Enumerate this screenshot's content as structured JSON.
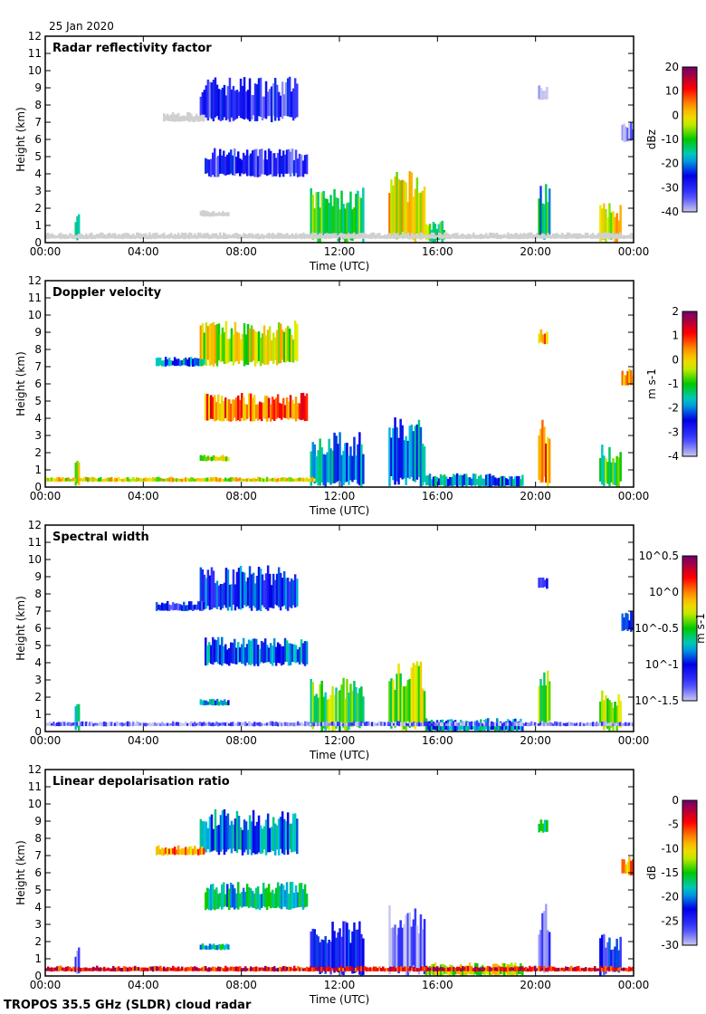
{
  "date_label": "25 Jan 2020",
  "footer": "TROPOS 35.5 GHz (SLDR) cloud radar",
  "chart_data": [
    {
      "type": "heatmap",
      "title": "Radar reflectivity factor",
      "xlabel": "Time (UTC)",
      "ylabel": "Height (km)",
      "xlim": [
        0,
        24
      ],
      "ylim": [
        0,
        12
      ],
      "xticks": [
        "00:00",
        "04:00",
        "08:00",
        "12:00",
        "16:00",
        "20:00",
        "00:00"
      ],
      "yticks": [
        "0",
        "1",
        "2",
        "3",
        "4",
        "5",
        "6",
        "7",
        "8",
        "9",
        "10",
        "11",
        "12"
      ],
      "colorbar": {
        "label": "dBz",
        "range": [
          -40,
          20
        ],
        "ticks": [
          "20",
          "10",
          "0",
          "-10",
          "-20",
          "-30",
          "-40"
        ]
      },
      "features": [
        [
          6.3,
          10.3,
          7.0,
          9.7,
          -30
        ],
        [
          4.8,
          6.5,
          7.0,
          7.6,
          -45
        ],
        [
          6.5,
          10.7,
          3.8,
          5.5,
          -30
        ],
        [
          6.3,
          7.5,
          1.5,
          1.9,
          -45
        ],
        [
          1.2,
          1.4,
          0.0,
          1.8,
          -20
        ],
        [
          10.8,
          13.0,
          0.0,
          3.2,
          -10
        ],
        [
          14.0,
          15.5,
          0.0,
          4.2,
          0
        ],
        [
          15.5,
          16.3,
          0.0,
          1.3,
          -10
        ],
        [
          20.1,
          20.6,
          0.0,
          3.8,
          -15
        ],
        [
          22.6,
          23.5,
          0.0,
          2.3,
          0
        ],
        [
          20.1,
          20.5,
          8.3,
          9.2,
          -40
        ],
        [
          23.5,
          24,
          5.8,
          7.0,
          -40
        ],
        [
          0,
          24,
          0.2,
          0.6,
          -45
        ]
      ]
    },
    {
      "type": "heatmap",
      "title": "Doppler velocity",
      "xlabel": "Time (UTC)",
      "ylabel": "Height (km)",
      "xlim": [
        0,
        24
      ],
      "ylim": [
        0,
        12
      ],
      "xticks": [
        "00:00",
        "04:00",
        "08:00",
        "12:00",
        "16:00",
        "20:00",
        "00:00"
      ],
      "yticks": [
        "0",
        "1",
        "2",
        "3",
        "4",
        "5",
        "6",
        "7",
        "8",
        "9",
        "10",
        "11",
        "12"
      ],
      "colorbar": {
        "label": "m s-1",
        "range": [
          -4,
          2
        ],
        "ticks": [
          "2",
          "1",
          "0",
          "-1",
          "-2",
          "-3",
          "-4"
        ]
      },
      "features": [
        [
          6.3,
          10.3,
          7.0,
          9.7,
          -0.3
        ],
        [
          4.5,
          6.5,
          7.0,
          7.6,
          -2.0
        ],
        [
          6.5,
          10.7,
          3.8,
          5.5,
          0.6
        ],
        [
          6.3,
          7.5,
          1.5,
          1.9,
          -0.3
        ],
        [
          1.2,
          1.4,
          0.0,
          1.8,
          -0.5
        ],
        [
          10.8,
          13.0,
          0.0,
          3.2,
          -2.0
        ],
        [
          14.0,
          15.5,
          0.0,
          4.2,
          -2.2
        ],
        [
          15.5,
          19.5,
          0.0,
          0.8,
          -2.0
        ],
        [
          20.1,
          20.6,
          0.0,
          4.2,
          0.5
        ],
        [
          22.6,
          23.5,
          0.0,
          2.5,
          -1.0
        ],
        [
          20.1,
          20.5,
          8.3,
          9.2,
          0.5
        ],
        [
          23.5,
          24,
          5.8,
          7.0,
          0.3
        ],
        [
          0,
          11,
          0.3,
          0.6,
          -0.2
        ]
      ]
    },
    {
      "type": "heatmap",
      "title": "Spectral width",
      "xlabel": "Time (UTC)",
      "ylabel": "Height (km)",
      "xlim": [
        0,
        24
      ],
      "ylim": [
        0,
        12
      ],
      "xticks": [
        "00:00",
        "04:00",
        "08:00",
        "12:00",
        "16:00",
        "20:00",
        "00:00"
      ],
      "yticks": [
        "0",
        "1",
        "2",
        "3",
        "4",
        "5",
        "6",
        "7",
        "8",
        "9",
        "10",
        "11",
        "12"
      ],
      "colorbar": {
        "label": "m s-1",
        "range": [
          -1.5,
          0.5
        ],
        "ticks": [
          "10^0.5",
          "10^0",
          "10^-0.5",
          "10^-1",
          "10^-1.5"
        ]
      },
      "features": [
        [
          6.3,
          10.3,
          7.0,
          9.7,
          -1.0
        ],
        [
          4.5,
          6.5,
          7.0,
          7.6,
          -1.1
        ],
        [
          6.5,
          10.7,
          3.8,
          5.5,
          -0.9
        ],
        [
          6.3,
          7.5,
          1.5,
          1.9,
          -0.8
        ],
        [
          1.2,
          1.4,
          0.0,
          1.8,
          -0.7
        ],
        [
          10.8,
          13.0,
          0.0,
          3.2,
          -0.5
        ],
        [
          14.0,
          15.5,
          0.0,
          4.2,
          -0.4
        ],
        [
          15.5,
          19.5,
          0.0,
          0.8,
          -0.8
        ],
        [
          20.1,
          20.6,
          0.0,
          4.2,
          -0.5
        ],
        [
          22.6,
          23.5,
          0.0,
          2.5,
          -0.3
        ],
        [
          20.1,
          20.5,
          8.3,
          9.2,
          -1.1
        ],
        [
          23.5,
          24,
          5.8,
          7.0,
          -1.1
        ],
        [
          0,
          24,
          0.3,
          0.6,
          -1.4
        ]
      ]
    },
    {
      "type": "heatmap",
      "title": "Linear depolarisation ratio",
      "xlabel": "Time (UTC)",
      "ylabel": "Height (km)",
      "xlim": [
        0,
        24
      ],
      "ylim": [
        0,
        12
      ],
      "xticks": [
        "00:00",
        "04:00",
        "08:00",
        "12:00",
        "16:00",
        "20:00",
        "00:00"
      ],
      "yticks": [
        "0",
        "1",
        "2",
        "3",
        "4",
        "5",
        "6",
        "7",
        "8",
        "9",
        "10",
        "11",
        "12"
      ],
      "colorbar": {
        "label": "dB",
        "range": [
          -30,
          0
        ],
        "ticks": [
          "0",
          "-5",
          "-10",
          "-15",
          "-20",
          "-25",
          "-30"
        ]
      },
      "features": [
        [
          6.3,
          10.3,
          7.0,
          9.7,
          -20
        ],
        [
          4.5,
          6.5,
          7.0,
          7.6,
          -8
        ],
        [
          6.5,
          10.7,
          3.8,
          5.5,
          -18
        ],
        [
          6.3,
          7.5,
          1.5,
          1.9,
          -18
        ],
        [
          1.2,
          1.4,
          0.0,
          1.8,
          -26
        ],
        [
          10.8,
          13.0,
          0.0,
          3.2,
          -24
        ],
        [
          14.0,
          15.5,
          0.0,
          4.2,
          -28
        ],
        [
          15.5,
          19.5,
          0.0,
          0.8,
          -12
        ],
        [
          20.1,
          20.6,
          0.0,
          4.2,
          -26
        ],
        [
          22.6,
          23.5,
          0.0,
          2.5,
          -24
        ],
        [
          20.1,
          20.5,
          8.3,
          9.2,
          -15
        ],
        [
          23.5,
          24,
          5.8,
          7.0,
          -8
        ],
        [
          0,
          24,
          0.25,
          0.6,
          -4
        ]
      ]
    }
  ]
}
